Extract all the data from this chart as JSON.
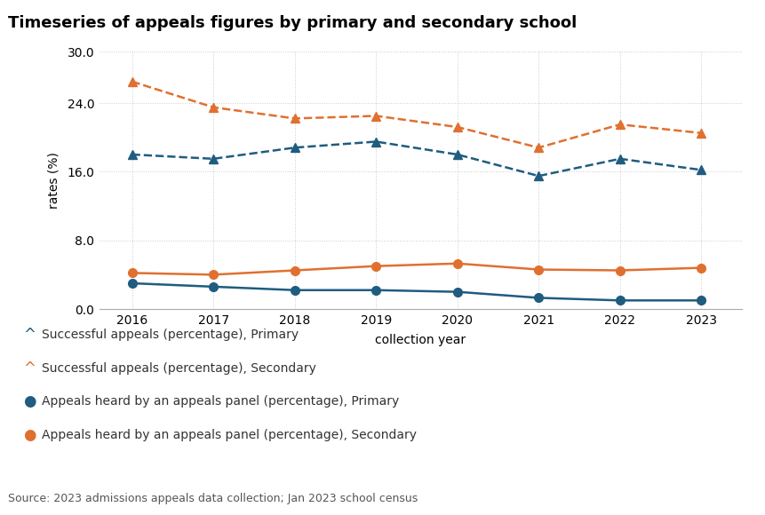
{
  "title": "Timeseries of appeals figures by primary and secondary school",
  "xlabel": "collection year",
  "ylabel": "rates (%)",
  "source": "Source: 2023 admissions appeals data collection; Jan 2023 school census",
  "years": [
    2016,
    2017,
    2018,
    2019,
    2020,
    2021,
    2022,
    2023
  ],
  "series": {
    "successful_primary": {
      "label": "Successful appeals (percentage), Primary",
      "values": [
        18.0,
        17.5,
        18.8,
        19.5,
        18.0,
        15.5,
        17.5,
        16.2
      ],
      "color": "#1f5c80",
      "linestyle": "dashed",
      "marker": "^",
      "solid": false
    },
    "successful_secondary": {
      "label": "Successful appeals (percentage), Secondary",
      "values": [
        26.5,
        23.5,
        22.2,
        22.5,
        21.2,
        18.8,
        21.5,
        20.5
      ],
      "color": "#e07030",
      "linestyle": "dashed",
      "marker": "^",
      "solid": false
    },
    "heard_primary": {
      "label": "Appeals heard by an appeals panel (percentage), Primary",
      "values": [
        3.0,
        2.6,
        2.2,
        2.2,
        2.0,
        1.3,
        1.0,
        1.0
      ],
      "color": "#1f5c80",
      "linestyle": "solid",
      "marker": "o",
      "solid": true
    },
    "heard_secondary": {
      "label": "Appeals heard by an appeals panel (percentage), Secondary",
      "values": [
        4.2,
        4.0,
        4.5,
        5.0,
        5.3,
        4.6,
        4.5,
        4.8
      ],
      "color": "#e07030",
      "linestyle": "solid",
      "marker": "o",
      "solid": true
    }
  },
  "ylim": [
    0,
    30
  ],
  "yticks": [
    0.0,
    8.0,
    16.0,
    24.0,
    30.0
  ],
  "ytick_labels": [
    "0.0",
    "8.0",
    "16.0",
    "24.0",
    "30.0"
  ],
  "background_color": "#ffffff",
  "grid_color": "#cccccc",
  "title_fontsize": 13,
  "axis_fontsize": 10,
  "tick_fontsize": 10,
  "legend_fontsize": 10,
  "source_fontsize": 9
}
